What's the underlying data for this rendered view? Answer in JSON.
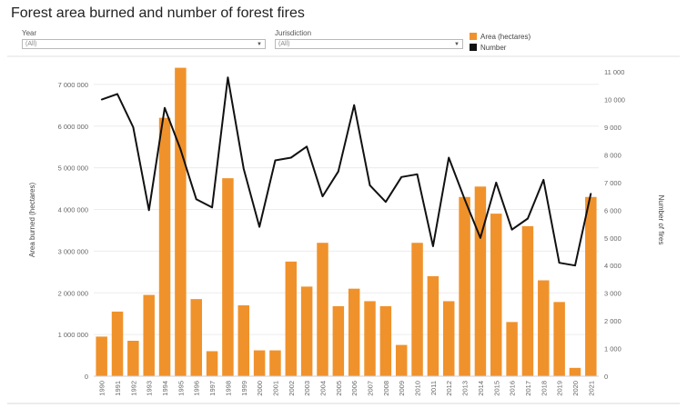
{
  "page": {
    "title": "Forest area burned and number of forest fires"
  },
  "filters": {
    "year": {
      "label": "Year",
      "value": "(All)"
    },
    "jurisdiction": {
      "label": "Jurisdiction",
      "value": "(All)"
    }
  },
  "legend": {
    "area_label": "Area (hectares)",
    "number_label": "Number"
  },
  "colors": {
    "bar": "#f0922b",
    "line": "#111111",
    "grid": "#ececec"
  },
  "chart_data": {
    "type": "bar",
    "categories": [
      "1990",
      "1991",
      "1992",
      "1993",
      "1994",
      "1995",
      "1996",
      "1997",
      "1998",
      "1999",
      "2000",
      "2001",
      "2002",
      "2003",
      "2004",
      "2005",
      "2006",
      "2007",
      "2008",
      "2009",
      "2010",
      "2011",
      "2012",
      "2013",
      "2014",
      "2015",
      "2016",
      "2017",
      "2018",
      "2019",
      "2020",
      "2021"
    ],
    "series": [
      {
        "name": "Area (hectares)",
        "type": "bar",
        "axis": "left",
        "values": [
          950000,
          1550000,
          850000,
          1950000,
          6200000,
          7400000,
          1850000,
          600000,
          4750000,
          1700000,
          620000,
          620000,
          2750000,
          2150000,
          3200000,
          1680000,
          2100000,
          1800000,
          1680000,
          750000,
          3200000,
          2400000,
          1800000,
          4300000,
          4550000,
          3900000,
          1300000,
          3600000,
          2300000,
          1780000,
          200000,
          4300000
        ]
      },
      {
        "name": "Number",
        "type": "line",
        "axis": "right",
        "values": [
          10000,
          10200,
          9000,
          6000,
          9700,
          8200,
          6400,
          6100,
          10800,
          7500,
          5400,
          7800,
          7900,
          8300,
          6500,
          7400,
          9800,
          6900,
          6300,
          7200,
          7300,
          4700,
          7900,
          6400,
          5000,
          7000,
          5300,
          5700,
          7100,
          4100,
          4000,
          6600
        ]
      }
    ],
    "y_left": {
      "label": "Area burned (hectares)",
      "min": 0,
      "max": 7500000,
      "ticks": [
        0,
        1000000,
        2000000,
        3000000,
        4000000,
        5000000,
        6000000,
        7000000
      ],
      "tick_labels": [
        "0",
        "1 000 000",
        "2 000 000",
        "3 000 000",
        "4 000 000",
        "5 000 000",
        "6 000 000",
        "7 000 000"
      ]
    },
    "y_right": {
      "label": "Number of fires",
      "min": 0,
      "max": 11300,
      "ticks": [
        0,
        1000,
        2000,
        3000,
        4000,
        5000,
        6000,
        7000,
        8000,
        9000,
        10000,
        11000
      ],
      "tick_labels": [
        "0",
        "1 000",
        "2 000",
        "3 000",
        "4 000",
        "5 000",
        "6 000",
        "7 000",
        "8 000",
        "9 000",
        "10 000",
        "11 000"
      ]
    },
    "grid": true,
    "legend_position": "top-right"
  }
}
